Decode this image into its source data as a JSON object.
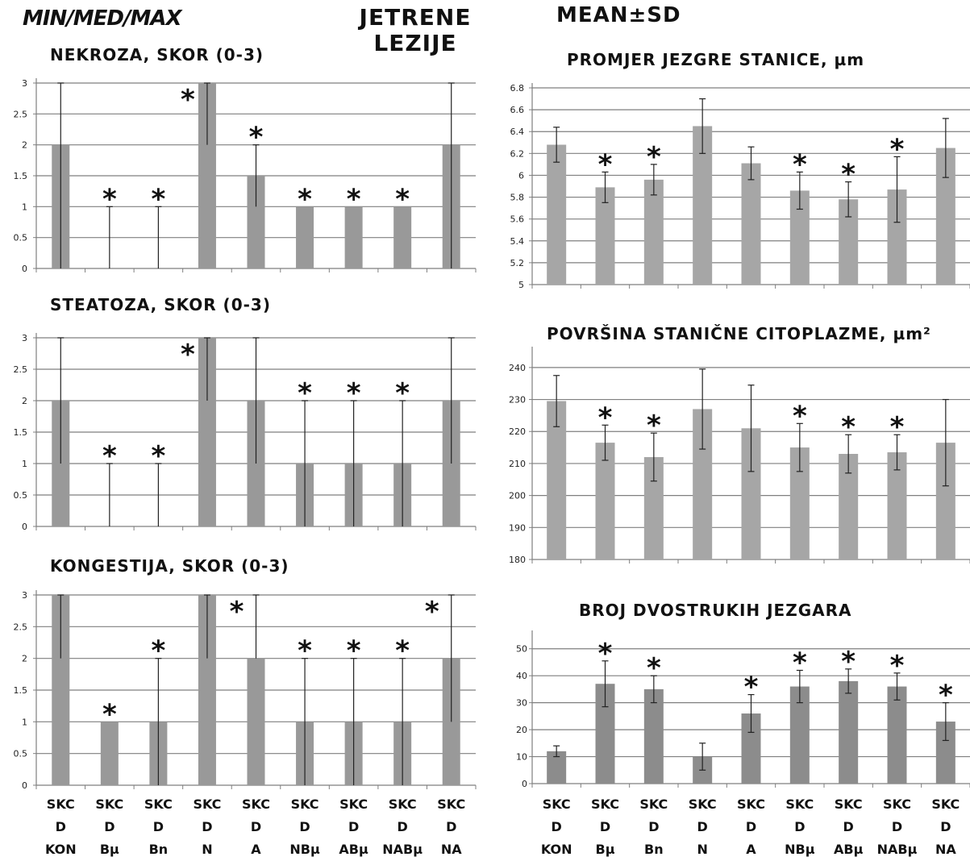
{
  "headers": {
    "left": "MIN/MED/MAX",
    "center_line1": "JETRENE",
    "center_line2": "LEZIJE",
    "right": "MEAN±SD"
  },
  "xlabels_left": [
    [
      "SKC",
      "D",
      "KON"
    ],
    [
      "SKC",
      "D",
      "Bµ"
    ],
    [
      "SKC",
      "D",
      "Bn"
    ],
    [
      "SKC",
      "D",
      "N"
    ],
    [
      "SKC",
      "D",
      "A"
    ],
    [
      "SKC",
      "D",
      "NBµ"
    ],
    [
      "SKC",
      "D",
      "ABµ"
    ],
    [
      "SKC",
      "D",
      "NABµ"
    ],
    [
      "SKC",
      "D",
      "NA"
    ]
  ],
  "xlabels_right": [
    [
      "SKC",
      "D",
      "KON"
    ],
    [
      "SKC",
      "D",
      "Bµ"
    ],
    [
      "SKC",
      "D",
      "Bn"
    ],
    [
      "SKC",
      "D",
      "N"
    ],
    [
      "SKC",
      "D",
      "A"
    ],
    [
      "SKC",
      "D",
      "NBµ"
    ],
    [
      "SKC",
      "D",
      "ABµ"
    ],
    [
      "SKC",
      "D",
      "NABµ"
    ],
    [
      "SKC",
      "D",
      "NA"
    ]
  ],
  "chart_data": [
    {
      "type": "bar",
      "title": "NEKROZA, SKOR (0-3)",
      "statistic": "median with min/max range",
      "categories": [
        "SKC D KON",
        "SKC D Bµ",
        "SKC D Bn",
        "SKC D N",
        "SKC D A",
        "SKC D NBµ",
        "SKC D ABµ",
        "SKC D NABµ",
        "SKC D NA"
      ],
      "values": [
        2,
        0,
        0,
        3,
        1.5,
        1,
        1,
        1,
        2
      ],
      "min": [
        0,
        0,
        0,
        2,
        1,
        1,
        1,
        1,
        0
      ],
      "max": [
        3,
        1,
        1,
        3,
        2,
        1,
        1,
        1,
        3
      ],
      "significant": [
        false,
        true,
        true,
        true,
        true,
        true,
        true,
        true,
        false
      ],
      "ylim": [
        0,
        3
      ],
      "yticks": [
        0,
        0.5,
        1,
        1.5,
        2,
        2.5,
        3
      ],
      "bar_color": "#999999",
      "grid": true
    },
    {
      "type": "bar",
      "title": "STEATOZA, SKOR (0-3)",
      "statistic": "median with min/max range",
      "categories": [
        "SKC D KON",
        "SKC D Bµ",
        "SKC D Bn",
        "SKC D N",
        "SKC D A",
        "SKC D NBµ",
        "SKC D ABµ",
        "SKC D NABµ",
        "SKC D NA"
      ],
      "values": [
        2,
        0,
        0,
        3,
        2,
        1,
        1,
        1,
        2
      ],
      "min": [
        1,
        0,
        0,
        2,
        1,
        0,
        0,
        0,
        1
      ],
      "max": [
        3,
        1,
        1,
        3,
        3,
        2,
        2,
        2,
        3
      ],
      "significant": [
        false,
        true,
        true,
        true,
        false,
        true,
        true,
        true,
        false
      ],
      "ylim": [
        0,
        3
      ],
      "yticks": [
        0,
        0.5,
        1,
        1.5,
        2,
        2.5,
        3
      ],
      "bar_color": "#999999",
      "grid": true
    },
    {
      "type": "bar",
      "title": "KONGESTIJA, SKOR (0-3)",
      "statistic": "median with min/max range",
      "categories": [
        "SKC D KON",
        "SKC D Bµ",
        "SKC D Bn",
        "SKC D N",
        "SKC D A",
        "SKC D NBµ",
        "SKC D ABµ",
        "SKC D NABµ",
        "SKC D NA"
      ],
      "values": [
        3,
        1,
        1,
        3,
        2,
        1,
        1,
        1,
        2
      ],
      "min": [
        2,
        1,
        0,
        2,
        2,
        0,
        0,
        0,
        1
      ],
      "max": [
        3,
        1,
        2,
        3,
        3,
        2,
        2,
        2,
        3
      ],
      "significant": [
        false,
        true,
        true,
        false,
        true,
        true,
        true,
        true,
        true
      ],
      "ylim": [
        0,
        3
      ],
      "yticks": [
        0,
        0.5,
        1,
        1.5,
        2,
        2.5,
        3
      ],
      "bar_color": "#999999",
      "grid": true
    },
    {
      "type": "bar",
      "title": "PROMJER JEZGRE STANICE, µm",
      "statistic": "mean ± SD",
      "categories": [
        "SKC D KON",
        "SKC D Bµ",
        "SKC D Bn",
        "SKC D N",
        "SKC D A",
        "SKC D NBµ",
        "SKC D ABµ",
        "SKC D NABµ",
        "SKC D NA"
      ],
      "values": [
        6.28,
        5.89,
        5.96,
        6.45,
        6.11,
        5.86,
        5.78,
        5.87,
        6.25
      ],
      "sd": [
        0.16,
        0.14,
        0.14,
        0.25,
        0.15,
        0.17,
        0.16,
        0.3,
        0.27
      ],
      "significant": [
        false,
        true,
        true,
        false,
        false,
        true,
        true,
        true,
        false
      ],
      "ylim": [
        5,
        6.8
      ],
      "yticks": [
        5,
        5.2,
        5.4,
        5.6,
        5.8,
        6,
        6.2,
        6.4,
        6.6,
        6.8
      ],
      "bar_color": "#a6a6a6",
      "grid": true
    },
    {
      "type": "bar",
      "title": "POVRŠINA STANIČNE CITOPLAZME, µm²",
      "statistic": "mean ± SD",
      "categories": [
        "SKC D KON",
        "SKC D Bµ",
        "SKC D Bn",
        "SKC D N",
        "SKC D A",
        "SKC D NBµ",
        "SKC D ABµ",
        "SKC D NABµ",
        "SKC D NA"
      ],
      "values": [
        229.5,
        216.5,
        212,
        227,
        221,
        215,
        213,
        213.5,
        216.5
      ],
      "sd": [
        8,
        5.5,
        7.5,
        12.5,
        13.5,
        7.5,
        6,
        5.5,
        13.5
      ],
      "significant": [
        false,
        true,
        true,
        false,
        false,
        true,
        true,
        true,
        false
      ],
      "ylim": [
        180,
        245
      ],
      "yticks": [
        180,
        190,
        200,
        210,
        220,
        230,
        240
      ],
      "bar_color": "#a6a6a6",
      "grid": true
    },
    {
      "type": "bar",
      "title": "BROJ DVOSTRUKIH JEZGARA",
      "statistic": "mean ± SD",
      "categories": [
        "SKC D KON",
        "SKC D Bµ",
        "SKC D Bn",
        "SKC D N",
        "SKC D A",
        "SKC D NBµ",
        "SKC D ABµ",
        "SKC D NABµ",
        "SKC D NA"
      ],
      "values": [
        12,
        37,
        35,
        10,
        26,
        36,
        38,
        36,
        23
      ],
      "sd": [
        2,
        8.5,
        5,
        5,
        7,
        6,
        4.5,
        5,
        7
      ],
      "significant": [
        false,
        true,
        true,
        false,
        true,
        true,
        true,
        true,
        true
      ],
      "ylim": [
        0,
        55
      ],
      "yticks": [
        0,
        10,
        20,
        30,
        40,
        50
      ],
      "bar_color": "#8c8c8c",
      "grid": true
    }
  ]
}
